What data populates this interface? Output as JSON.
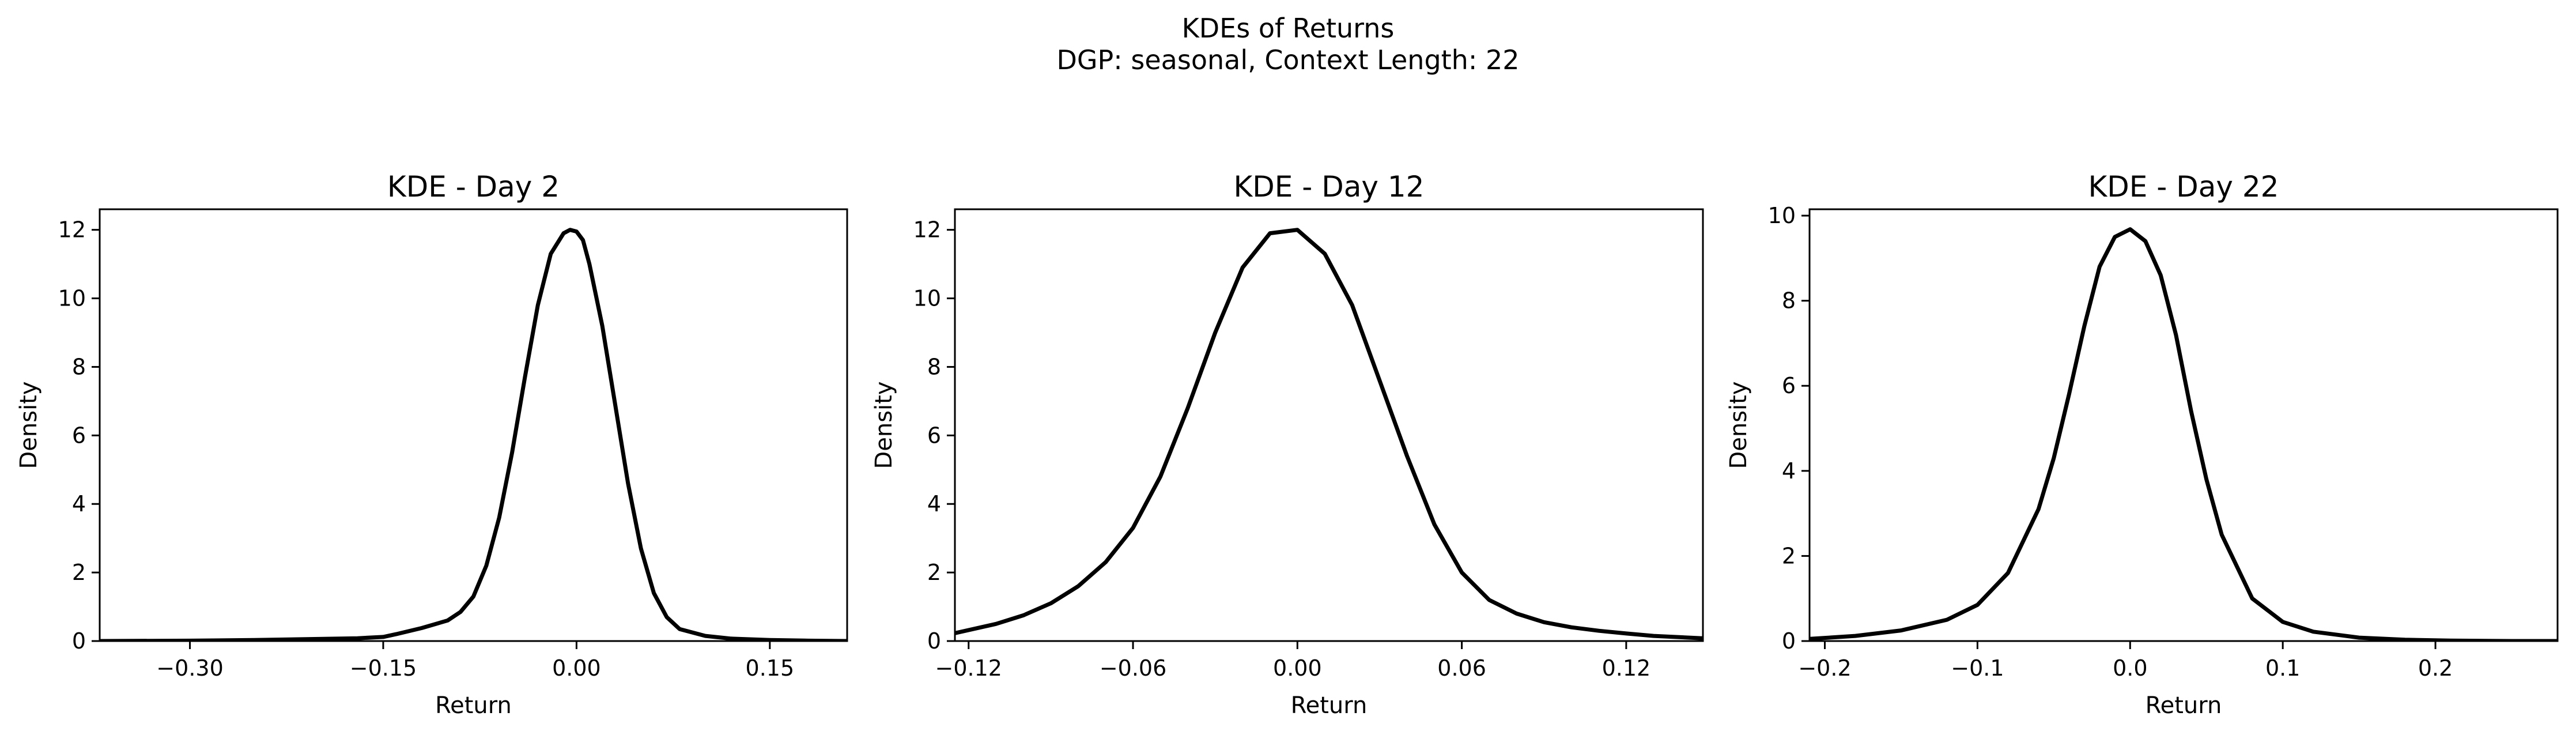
{
  "figure": {
    "suptitle_line1": "KDEs of Returns",
    "suptitle_line2": "DGP: seasonal, Context Length: 22"
  },
  "chart_data": [
    {
      "type": "line",
      "title": "KDE - Day 2",
      "xlabel": "Return",
      "ylabel": "Density",
      "xlim": [
        -0.37,
        0.21
      ],
      "ylim": [
        0,
        12.6
      ],
      "xticks": [
        -0.3,
        -0.15,
        0.0,
        0.15
      ],
      "xtick_labels": [
        "−0.30",
        "−0.15",
        "0.00",
        "0.15"
      ],
      "yticks": [
        0,
        2,
        4,
        6,
        8,
        10,
        12
      ],
      "ytick_labels": [
        "0",
        "2",
        "4",
        "6",
        "8",
        "10",
        "12"
      ],
      "line_color": "#000000",
      "series": [
        {
          "x": [
            -0.37,
            -0.3,
            -0.25,
            -0.2,
            -0.17,
            -0.15,
            -0.14,
            -0.12,
            -0.1,
            -0.09,
            -0.08,
            -0.07,
            -0.06,
            -0.05,
            -0.04,
            -0.03,
            -0.02,
            -0.01,
            -0.005,
            0.0,
            0.005,
            0.01,
            0.02,
            0.03,
            0.04,
            0.05,
            0.06,
            0.07,
            0.08,
            0.1,
            0.12,
            0.15,
            0.18,
            0.21
          ],
          "y": [
            0.0,
            0.01,
            0.03,
            0.06,
            0.08,
            0.12,
            0.2,
            0.38,
            0.6,
            0.85,
            1.3,
            2.2,
            3.6,
            5.5,
            7.7,
            9.8,
            11.3,
            11.9,
            12.0,
            11.95,
            11.7,
            11.0,
            9.2,
            6.9,
            4.6,
            2.7,
            1.4,
            0.7,
            0.35,
            0.15,
            0.07,
            0.03,
            0.01,
            0.0
          ]
        }
      ]
    },
    {
      "type": "line",
      "title": "KDE - Day 12",
      "xlabel": "Return",
      "ylabel": "Density",
      "xlim": [
        -0.125,
        0.148
      ],
      "ylim": [
        0,
        12.6
      ],
      "xticks": [
        -0.12,
        -0.06,
        0.0,
        0.06,
        0.12
      ],
      "xtick_labels": [
        "−0.12",
        "−0.06",
        "0.00",
        "0.06",
        "0.12"
      ],
      "yticks": [
        0,
        2,
        4,
        6,
        8,
        10,
        12
      ],
      "ytick_labels": [
        "0",
        "2",
        "4",
        "6",
        "8",
        "10",
        "12"
      ],
      "line_color": "#000000",
      "series": [
        {
          "x": [
            -0.125,
            -0.11,
            -0.1,
            -0.09,
            -0.08,
            -0.07,
            -0.06,
            -0.05,
            -0.04,
            -0.03,
            -0.02,
            -0.01,
            0.0,
            0.01,
            0.02,
            0.03,
            0.04,
            0.05,
            0.06,
            0.07,
            0.08,
            0.09,
            0.1,
            0.11,
            0.12,
            0.13,
            0.148
          ],
          "y": [
            0.23,
            0.5,
            0.75,
            1.1,
            1.6,
            2.3,
            3.3,
            4.8,
            6.8,
            9.0,
            10.9,
            11.9,
            12.0,
            11.3,
            9.8,
            7.6,
            5.4,
            3.4,
            2.0,
            1.2,
            0.8,
            0.55,
            0.4,
            0.3,
            0.22,
            0.15,
            0.08
          ]
        }
      ]
    },
    {
      "type": "line",
      "title": "KDE - Day 22",
      "xlabel": "Return",
      "ylabel": "Density",
      "xlim": [
        -0.21,
        0.28
      ],
      "ylim": [
        0,
        10.15
      ],
      "xticks": [
        -0.2,
        -0.1,
        0.0,
        0.1,
        0.2
      ],
      "xtick_labels": [
        "−0.2",
        "−0.1",
        "0.0",
        "0.1",
        "0.2"
      ],
      "yticks": [
        0,
        2,
        4,
        6,
        8,
        10
      ],
      "ytick_labels": [
        "0",
        "2",
        "4",
        "6",
        "8",
        "10"
      ],
      "line_color": "#000000",
      "series": [
        {
          "x": [
            -0.21,
            -0.18,
            -0.15,
            -0.12,
            -0.1,
            -0.08,
            -0.06,
            -0.05,
            -0.04,
            -0.03,
            -0.02,
            -0.01,
            0.0,
            0.01,
            0.02,
            0.03,
            0.04,
            0.05,
            0.06,
            0.08,
            0.1,
            0.12,
            0.15,
            0.18,
            0.21,
            0.25,
            0.28
          ],
          "y": [
            0.05,
            0.12,
            0.25,
            0.5,
            0.85,
            1.6,
            3.1,
            4.3,
            5.8,
            7.4,
            8.8,
            9.5,
            9.68,
            9.4,
            8.6,
            7.2,
            5.4,
            3.8,
            2.5,
            1.0,
            0.45,
            0.22,
            0.08,
            0.03,
            0.01,
            0.0,
            0.0
          ]
        }
      ]
    }
  ]
}
